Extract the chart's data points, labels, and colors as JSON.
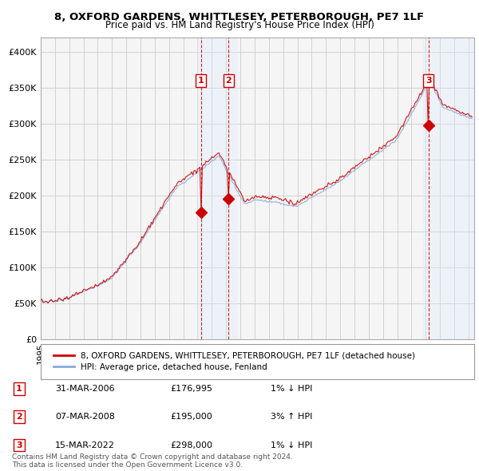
{
  "title": "8, OXFORD GARDENS, WHITTLESEY, PETERBOROUGH, PE7 1LF",
  "subtitle": "Price paid vs. HM Land Registry's House Price Index (HPI)",
  "xlim": [
    1995.0,
    2025.4
  ],
  "ylim": [
    0,
    420000
  ],
  "yticks": [
    0,
    50000,
    100000,
    150000,
    200000,
    250000,
    300000,
    350000,
    400000
  ],
  "ytick_labels": [
    "£0",
    "£50K",
    "£100K",
    "£150K",
    "£200K",
    "£250K",
    "£300K",
    "£350K",
    "£400K"
  ],
  "sale_color": "#cc0000",
  "hpi_color": "#88aadd",
  "grid_color": "#cccccc",
  "bg_color": "#ffffff",
  "plot_bg_color": "#f5f5f5",
  "sales": [
    {
      "year": 2006.24,
      "price": 176995,
      "label": "1"
    },
    {
      "year": 2008.18,
      "price": 195000,
      "label": "2"
    },
    {
      "year": 2022.2,
      "price": 298000,
      "label": "3"
    }
  ],
  "shade1_x0": 2006.0,
  "shade1_x1": 2008.7,
  "shade2_x0": 2021.8,
  "shade2_x1": 2025.4,
  "shade_color": "#ddeeff",
  "vline_color": "#cc0000",
  "legend_sale_label": "8, OXFORD GARDENS, WHITTLESEY, PETERBOROUGH, PE7 1LF (detached house)",
  "legend_hpi_label": "HPI: Average price, detached house, Fenland",
  "table_rows": [
    {
      "num": "1",
      "date": "31-MAR-2006",
      "price": "£176,995",
      "hpi": "1% ↓ HPI"
    },
    {
      "num": "2",
      "date": "07-MAR-2008",
      "price": "£195,000",
      "hpi": "3% ↑ HPI"
    },
    {
      "num": "3",
      "date": "15-MAR-2022",
      "price": "£298,000",
      "hpi": "1% ↓ HPI"
    }
  ],
  "footer": "Contains HM Land Registry data © Crown copyright and database right 2024.\nThis data is licensed under the Open Government Licence v3.0."
}
